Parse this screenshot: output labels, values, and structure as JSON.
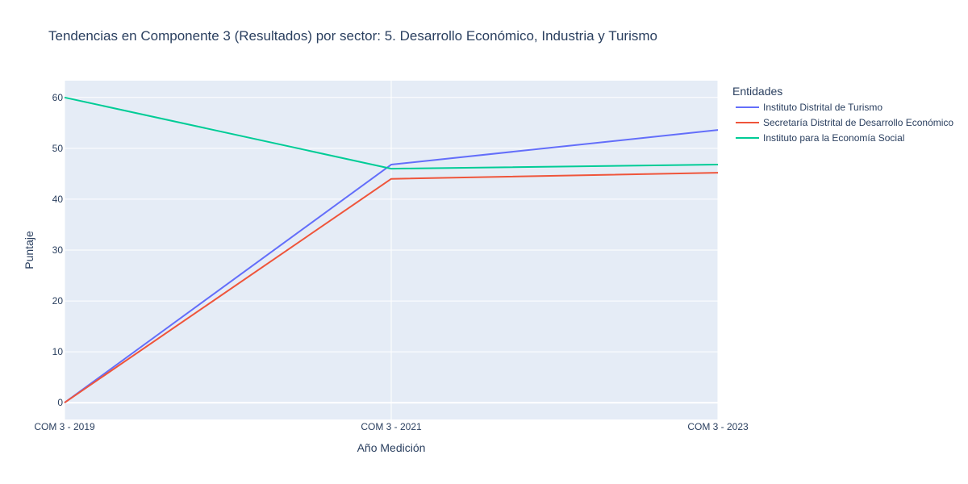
{
  "chart_data": {
    "type": "line",
    "title": "Tendencias en Componente 3 (Resultados) por sector: 5. Desarrollo Económico, Industria y Turismo",
    "xlabel": "Año Medición",
    "ylabel": "Puntaje",
    "categories": [
      "COM 3 - 2019",
      "COM 3 - 2021",
      "COM 3 - 2023"
    ],
    "ylim": [
      -3.3,
      63.3
    ],
    "yticks": [
      0,
      10,
      20,
      30,
      40,
      50,
      60
    ],
    "grid": true,
    "legend_title": "Entidades",
    "legend_position": "right",
    "series": [
      {
        "name": "Instituto Distrital de Turismo",
        "color": "#636efa",
        "values": [
          0,
          46.8,
          53.6
        ]
      },
      {
        "name": "Secretaría Distrital de Desarrollo Económico",
        "color": "#ef553b",
        "values": [
          0,
          44.0,
          45.2
        ]
      },
      {
        "name": "Instituto para la Economía Social",
        "color": "#00cc96",
        "values": [
          60,
          46.0,
          46.8
        ]
      }
    ]
  }
}
